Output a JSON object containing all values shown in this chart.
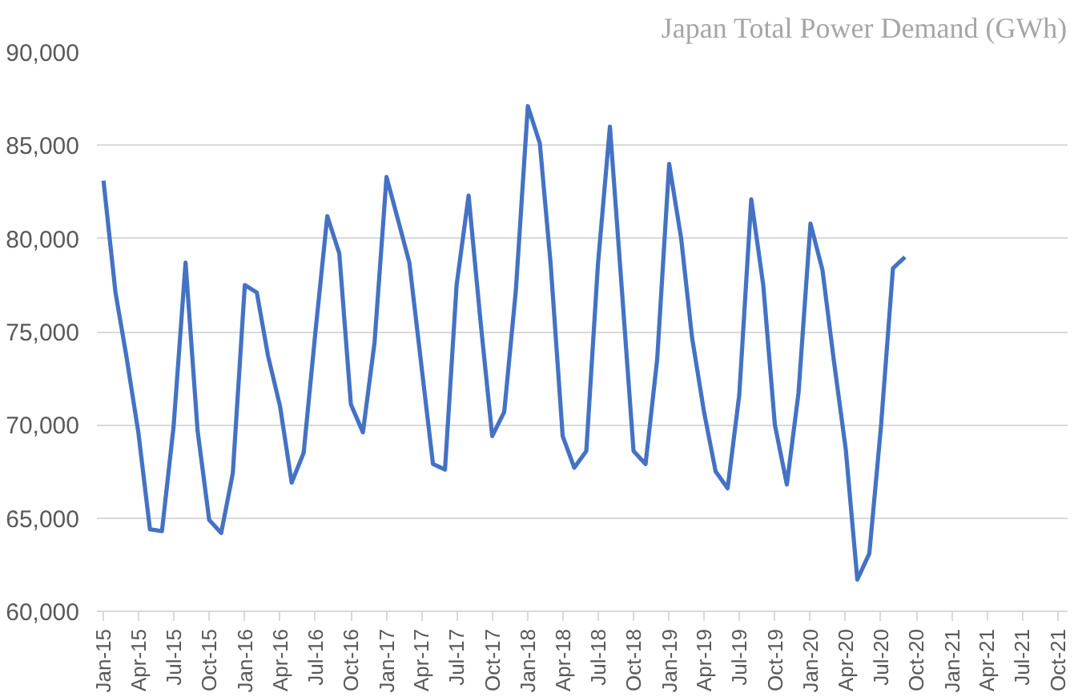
{
  "chart_data": {
    "type": "line",
    "title": "Japan Total Power Demand (GWh)",
    "x": [
      "2015-01",
      "2015-02",
      "2015-03",
      "2015-04",
      "2015-05",
      "2015-06",
      "2015-07",
      "2015-08",
      "2015-09",
      "2015-10",
      "2015-11",
      "2015-12",
      "2016-01",
      "2016-02",
      "2016-03",
      "2016-04",
      "2016-05",
      "2016-06",
      "2016-07",
      "2016-08",
      "2016-09",
      "2016-10",
      "2016-11",
      "2016-12",
      "2017-01",
      "2017-02",
      "2017-03",
      "2017-04",
      "2017-05",
      "2017-06",
      "2017-07",
      "2017-08",
      "2017-09",
      "2017-10",
      "2017-11",
      "2017-12",
      "2018-01",
      "2018-02",
      "2018-03",
      "2018-04",
      "2018-05",
      "2018-06",
      "2018-07",
      "2018-08",
      "2018-09",
      "2018-10",
      "2018-11",
      "2018-12",
      "2019-01",
      "2019-02",
      "2019-03",
      "2019-04",
      "2019-05",
      "2019-06",
      "2019-07",
      "2019-08",
      "2019-09",
      "2019-10",
      "2019-11",
      "2019-12",
      "2020-01",
      "2020-02",
      "2020-03",
      "2020-04",
      "2020-05",
      "2020-06",
      "2020-07",
      "2020-08",
      "2020-09"
    ],
    "series": [
      {
        "color": "#4472c4",
        "values": [
          83100,
          77100,
          73700,
          69600,
          64400,
          64300,
          69900,
          78700,
          69700,
          64900,
          64200,
          67400,
          77500,
          77100,
          73700,
          71000,
          66900,
          68500,
          74900,
          81200,
          79200,
          71100,
          69600,
          74400,
          83300,
          80900,
          78700,
          73200,
          67900,
          67600,
          77500,
          82300,
          75500,
          69400,
          70700,
          77200,
          87100,
          85100,
          78600,
          69400,
          67700,
          68600,
          78600,
          86000,
          77200,
          68600,
          67900,
          73500,
          84000,
          80000,
          74700,
          70700,
          67500,
          66600,
          71600,
          82100,
          77500,
          70000,
          66800,
          71700,
          80800,
          78300,
          73500,
          68700,
          61700,
          63100,
          69900,
          78400,
          79000
        ]
      }
    ],
    "xlim": [
      "2014-12-15",
      "2021-10-26"
    ],
    "xticks": [
      {
        "value": "2015-01",
        "label": "Jan-15"
      },
      {
        "value": "2015-04",
        "label": "Apr-15"
      },
      {
        "value": "2015-07",
        "label": "Jul-15"
      },
      {
        "value": "2015-10",
        "label": "Oct-15"
      },
      {
        "value": "2016-01",
        "label": "Jan-16"
      },
      {
        "value": "2016-04",
        "label": "Apr-16"
      },
      {
        "value": "2016-07",
        "label": "Jul-16"
      },
      {
        "value": "2016-10",
        "label": "Oct-16"
      },
      {
        "value": "2017-01",
        "label": "Jan-17"
      },
      {
        "value": "2017-04",
        "label": "Apr-17"
      },
      {
        "value": "2017-07",
        "label": "Jul-17"
      },
      {
        "value": "2017-10",
        "label": "Oct-17"
      },
      {
        "value": "2018-01",
        "label": "Jan-18"
      },
      {
        "value": "2018-04",
        "label": "Apr-18"
      },
      {
        "value": "2018-07",
        "label": "Jul-18"
      },
      {
        "value": "2018-10",
        "label": "Oct-18"
      },
      {
        "value": "2019-01",
        "label": "Jan-19"
      },
      {
        "value": "2019-04",
        "label": "Apr-19"
      },
      {
        "value": "2019-07",
        "label": "Jul-19"
      },
      {
        "value": "2019-10",
        "label": "Oct-19"
      },
      {
        "value": "2020-01",
        "label": "Jan-20"
      },
      {
        "value": "2020-04",
        "label": "Apr-20"
      },
      {
        "value": "2020-07",
        "label": "Jul-20"
      },
      {
        "value": "2020-10",
        "label": "Oct-20"
      },
      {
        "value": "2021-01",
        "label": "Jan-21"
      },
      {
        "value": "2021-04",
        "label": "Apr-21"
      },
      {
        "value": "2021-07",
        "label": "Jul-21"
      },
      {
        "value": "2021-10",
        "label": "Oct-21"
      }
    ],
    "ylim": [
      60000,
      90000
    ],
    "yticks": [
      {
        "value": 60000,
        "label": "60,000"
      },
      {
        "value": 65000,
        "label": "65,000"
      },
      {
        "value": 70000,
        "label": "70,000"
      },
      {
        "value": 75000,
        "label": "75,000"
      },
      {
        "value": 80000,
        "label": "80,000"
      },
      {
        "value": 85000,
        "label": "85,000"
      },
      {
        "value": 90000,
        "label": "90,000"
      }
    ],
    "grid": "y",
    "marker": "none",
    "line_style": "solid"
  }
}
